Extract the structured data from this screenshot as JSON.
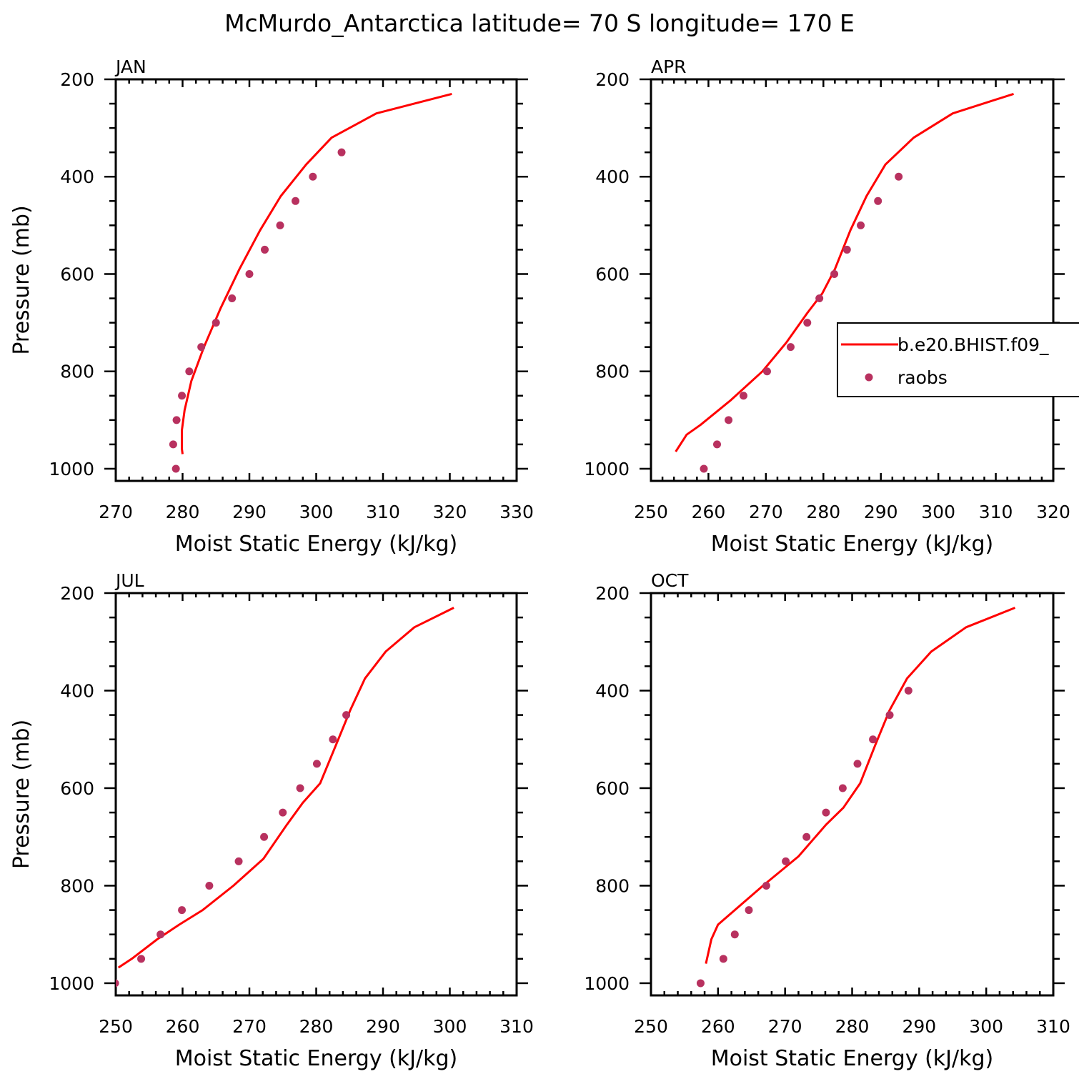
{
  "title": "McMurdo_Antarctica  latitude= 70 S longitude= 170 E",
  "colors": {
    "model": "#ff0000",
    "obs": "#b8315f"
  },
  "legend": {
    "location": "right edge of APR panel",
    "entries": [
      "b.e20.BHIST.f09_",
      "raobs"
    ]
  },
  "chart_data": [
    {
      "type": "line",
      "panel": "JAN",
      "xlabel": "Moist Static Energy (kJ/kg)",
      "ylabel": "Pressure (mb)",
      "xlim": [
        270,
        330
      ],
      "ylim": [
        1025,
        200
      ],
      "y_reversed": true,
      "xticks": [
        270,
        280,
        290,
        300,
        310,
        320,
        330
      ],
      "yticks": [
        200,
        400,
        600,
        800,
        1000
      ],
      "series": [
        {
          "name": "b.e20.BHIST.f09_",
          "kind": "line",
          "x": [
            320.3,
            309,
            302.3,
            298.5,
            294.7,
            291.6,
            288.5,
            285.7,
            283.2,
            281.3,
            280.3,
            279.9,
            279.9,
            280.0
          ],
          "y": [
            230,
            270,
            320,
            375,
            440,
            510,
            590,
            670,
            750,
            820,
            880,
            920,
            960,
            970
          ]
        },
        {
          "name": "raobs",
          "kind": "scatter",
          "x": [
            303.8,
            299.5,
            296.9,
            294.6,
            292.3,
            290.0,
            287.4,
            285.0,
            282.8,
            281.0,
            279.9,
            279.1,
            278.6,
            279.0
          ],
          "y": [
            350,
            400,
            450,
            500,
            550,
            600,
            650,
            700,
            750,
            800,
            850,
            900,
            950,
            1000
          ]
        }
      ]
    },
    {
      "type": "line",
      "panel": "APR",
      "xlabel": "Moist Static Energy (kJ/kg)",
      "ylabel": "",
      "xlim": [
        250,
        320
      ],
      "ylim": [
        1025,
        200
      ],
      "y_reversed": true,
      "xticks": [
        250,
        260,
        270,
        280,
        290,
        300,
        310,
        320
      ],
      "yticks": [
        200,
        400,
        600,
        800,
        1000
      ],
      "series": [
        {
          "name": "b.e20.BHIST.f09_",
          "kind": "line",
          "x": [
            313.1,
            302.5,
            295.7,
            290.8,
            287.5,
            284.7,
            282.0,
            279.8,
            277.2,
            273.6,
            269.4,
            263.8,
            258.6,
            256.2,
            254.3
          ],
          "y": [
            230,
            270,
            320,
            375,
            440,
            510,
            590,
            640,
            680,
            740,
            800,
            860,
            910,
            930,
            965
          ]
        },
        {
          "name": "raobs",
          "kind": "scatter",
          "x": [
            293.1,
            289.5,
            286.5,
            284.1,
            281.9,
            279.3,
            277.2,
            274.3,
            270.2,
            266.1,
            263.5,
            261.5,
            259.2
          ],
          "y": [
            400,
            450,
            500,
            550,
            600,
            650,
            700,
            750,
            800,
            850,
            900,
            950,
            1000
          ]
        }
      ]
    },
    {
      "type": "line",
      "panel": "JUL",
      "xlabel": "Moist Static Energy (kJ/kg)",
      "ylabel": "Pressure (mb)",
      "xlim": [
        250,
        310
      ],
      "ylim": [
        1025,
        200
      ],
      "y_reversed": true,
      "xticks": [
        250,
        260,
        270,
        280,
        290,
        300,
        310
      ],
      "yticks": [
        200,
        400,
        600,
        800,
        1000
      ],
      "series": [
        {
          "name": "b.e20.BHIST.f09_",
          "kind": "line",
          "x": [
            300.6,
            294.7,
            290.4,
            287.3,
            285.1,
            283.0,
            280.6,
            278.0,
            275.6,
            272.1,
            267.6,
            263.0,
            259.5,
            256.2,
            252.4,
            250.4
          ],
          "y": [
            230,
            270,
            320,
            375,
            440,
            510,
            590,
            630,
            675,
            745,
            800,
            850,
            880,
            910,
            950,
            968
          ]
        },
        {
          "name": "raobs",
          "kind": "scatter",
          "x": [
            284.5,
            282.5,
            280.1,
            277.6,
            275.0,
            272.2,
            268.4,
            264.0,
            259.9,
            256.7,
            253.8,
            249.9
          ],
          "y": [
            450,
            500,
            550,
            600,
            650,
            700,
            750,
            800,
            850,
            900,
            950,
            1000
          ]
        }
      ]
    },
    {
      "type": "line",
      "panel": "OCT",
      "xlabel": "Moist Static Energy (kJ/kg)",
      "ylabel": "",
      "xlim": [
        250,
        310
      ],
      "ylim": [
        1025,
        200
      ],
      "y_reversed": true,
      "xticks": [
        250,
        260,
        270,
        280,
        290,
        300,
        310
      ],
      "yticks": [
        200,
        400,
        600,
        800,
        1000
      ],
      "series": [
        {
          "name": "b.e20.BHIST.f09_",
          "kind": "line",
          "x": [
            304.3,
            297.0,
            291.8,
            288.2,
            285.6,
            283.5,
            281.2,
            278.7,
            276.1,
            272.0,
            266.7,
            262.5,
            260.0,
            259.0,
            258.2
          ],
          "y": [
            230,
            270,
            320,
            375,
            440,
            510,
            590,
            640,
            675,
            740,
            800,
            850,
            880,
            910,
            960
          ]
        },
        {
          "name": "raobs",
          "kind": "scatter",
          "x": [
            288.4,
            285.6,
            283.1,
            280.8,
            278.6,
            276.1,
            273.2,
            270.1,
            267.2,
            264.6,
            262.5,
            260.8,
            257.4
          ],
          "y": [
            400,
            450,
            500,
            550,
            600,
            650,
            700,
            750,
            800,
            850,
            900,
            950,
            1000
          ]
        }
      ]
    }
  ]
}
